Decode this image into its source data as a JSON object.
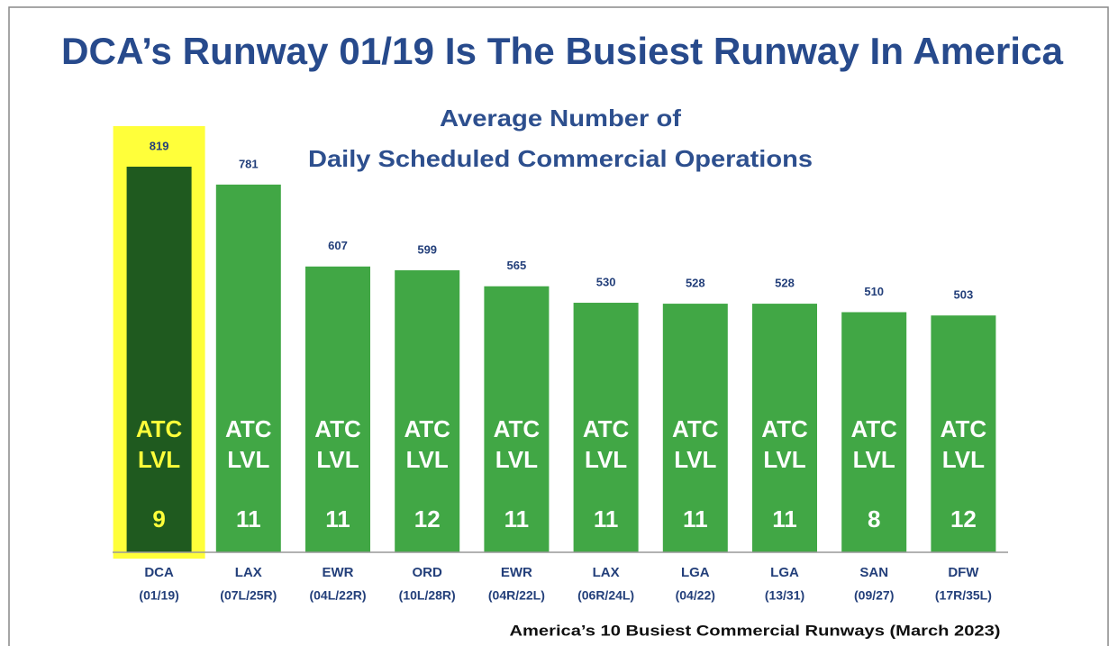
{
  "chart_data": {
    "type": "bar",
    "title": "DCA’s Runway 01/19 Is The Busiest Runway In America",
    "subtitle": [
      "Average Number of",
      "Daily Scheduled Commercial Operations"
    ],
    "categories": [
      "DCA",
      "LAX",
      "EWR",
      "ORD",
      "EWR",
      "LAX",
      "LGA",
      "LGA",
      "SAN",
      "DFW"
    ],
    "runways": [
      "(01/19)",
      "(07L/25R)",
      "(04L/22R)",
      "(10L/28R)",
      "(04R/22L)",
      "(06R/24L)",
      "(04/22)",
      "(13/31)",
      "(09/27)",
      "(17R/35L)"
    ],
    "values": [
      819,
      781,
      607,
      599,
      565,
      530,
      528,
      528,
      510,
      503
    ],
    "atc_label": [
      "ATC",
      "LVL"
    ],
    "atc_levels": [
      9,
      11,
      11,
      12,
      11,
      11,
      11,
      11,
      8,
      12
    ],
    "color": "#41a745",
    "highlight": 0,
    "highlight_color": "#1f5a1f",
    "highlight_box_color": "#ffff3a",
    "note": "America’s 10 Busiest Commercial Runways (March 2023)"
  }
}
